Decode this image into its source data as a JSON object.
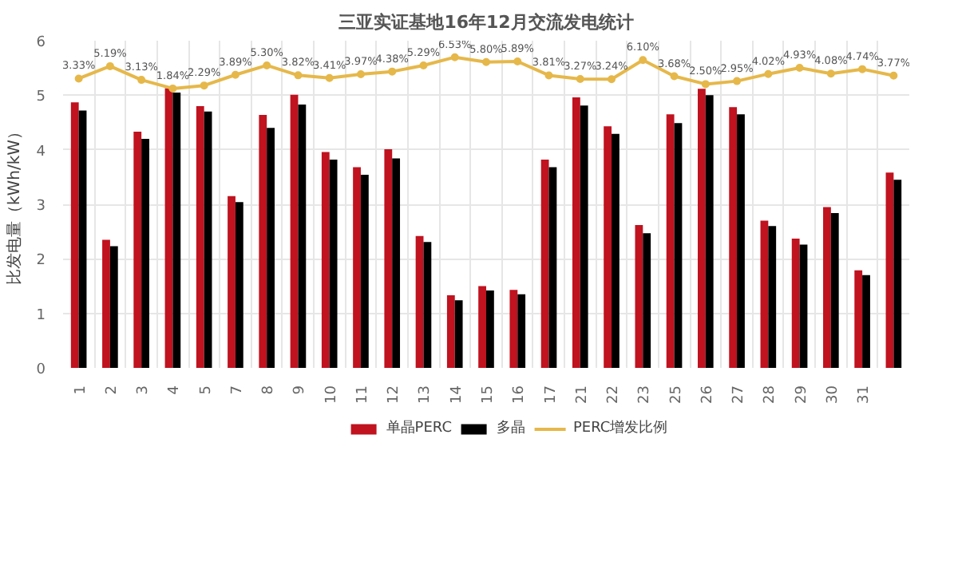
{
  "chart_data": {
    "type": "bar",
    "title": "三亚实证基地16年12月交流发电统计",
    "ylabel": "比发电量（kWh/kW）",
    "categories": [
      "1",
      "2",
      "3",
      "4",
      "5",
      "7",
      "8",
      "9",
      "10",
      "11",
      "12",
      "13",
      "14",
      "15",
      "16",
      "17",
      "21",
      "22",
      "23",
      "25",
      "26",
      "27",
      "28",
      "29",
      "30",
      "31",
      null
    ],
    "ylim": [
      0,
      6
    ],
    "yticks": [
      0,
      1,
      2,
      3,
      4,
      5,
      6
    ],
    "y2lim": [
      -40,
      9
    ],
    "grid": true,
    "legend": "bottom",
    "series": [
      {
        "name": "单晶PERC",
        "color": "#c0121f",
        "values": [
          4.87,
          2.35,
          4.33,
          5.13,
          4.8,
          3.15,
          4.64,
          5.01,
          3.96,
          3.68,
          4.01,
          2.42,
          1.33,
          1.5,
          1.43,
          3.82,
          4.96,
          4.43,
          2.62,
          4.65,
          5.12,
          4.78,
          2.7,
          2.37,
          2.95,
          1.79,
          3.58
        ]
      },
      {
        "name": "多晶",
        "color": "#000000",
        "values": [
          4.72,
          2.23,
          4.2,
          5.05,
          4.7,
          3.04,
          4.4,
          4.83,
          3.82,
          3.54,
          3.84,
          2.31,
          1.24,
          1.42,
          1.35,
          3.68,
          4.81,
          4.29,
          2.47,
          4.49,
          5.0,
          4.65,
          2.6,
          2.26,
          2.84,
          1.7,
          3.45
        ]
      },
      {
        "name": "PERC增发比例",
        "type": "line",
        "axis": "y2",
        "color": "#e6b84a",
        "marker": "circle",
        "values": [
          3.33,
          5.19,
          3.13,
          1.84,
          2.29,
          3.89,
          5.3,
          3.82,
          3.41,
          3.97,
          4.38,
          5.29,
          6.53,
          5.8,
          5.89,
          3.81,
          3.27,
          3.24,
          6.1,
          3.68,
          2.5,
          2.95,
          4.02,
          4.93,
          4.08,
          4.74,
          3.77
        ],
        "value_labels": [
          "3.33%",
          "5.19%",
          "3.13%",
          "1.84%",
          "2.29%",
          "3.89%",
          "5.30%",
          "3.82%",
          "3.41%",
          "3.97%",
          "4.38%",
          "5.29%",
          "6.53%",
          "5.80%",
          "5.89%",
          "3.81%",
          "3.27%",
          "3.24%",
          "6.10%",
          "3.68%",
          "2.50%",
          "2.95%",
          "4.02%",
          "4.93%",
          "4.08%",
          "4.74%",
          "3.77%"
        ]
      }
    ]
  }
}
